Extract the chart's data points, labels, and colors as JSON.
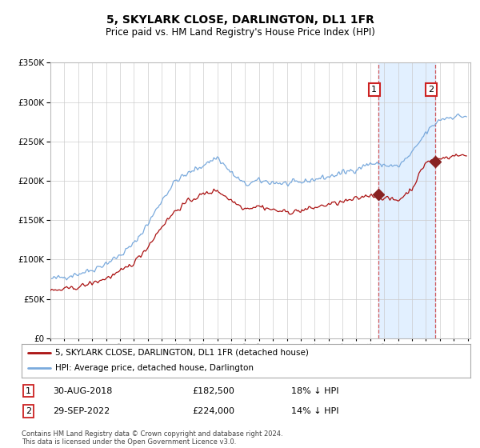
{
  "title": "5, SKYLARK CLOSE, DARLINGTON, DL1 1FR",
  "subtitle": "Price paid vs. HM Land Registry's House Price Index (HPI)",
  "title_fontsize": 10,
  "subtitle_fontsize": 8.5,
  "background_color": "#ffffff",
  "plot_bg_color": "#ffffff",
  "grid_color": "#cccccc",
  "hpi_color": "#7aaadd",
  "price_color": "#aa1111",
  "highlight_bg": "#ddeeff",
  "legend_line1": "5, SKYLARK CLOSE, DARLINGTON, DL1 1FR (detached house)",
  "legend_line2": "HPI: Average price, detached house, Darlington",
  "footnote": "Contains HM Land Registry data © Crown copyright and database right 2024.\nThis data is licensed under the Open Government Licence v3.0.",
  "ylim": [
    0,
    350000
  ],
  "yticks": [
    0,
    50000,
    100000,
    150000,
    200000,
    250000,
    300000,
    350000
  ]
}
